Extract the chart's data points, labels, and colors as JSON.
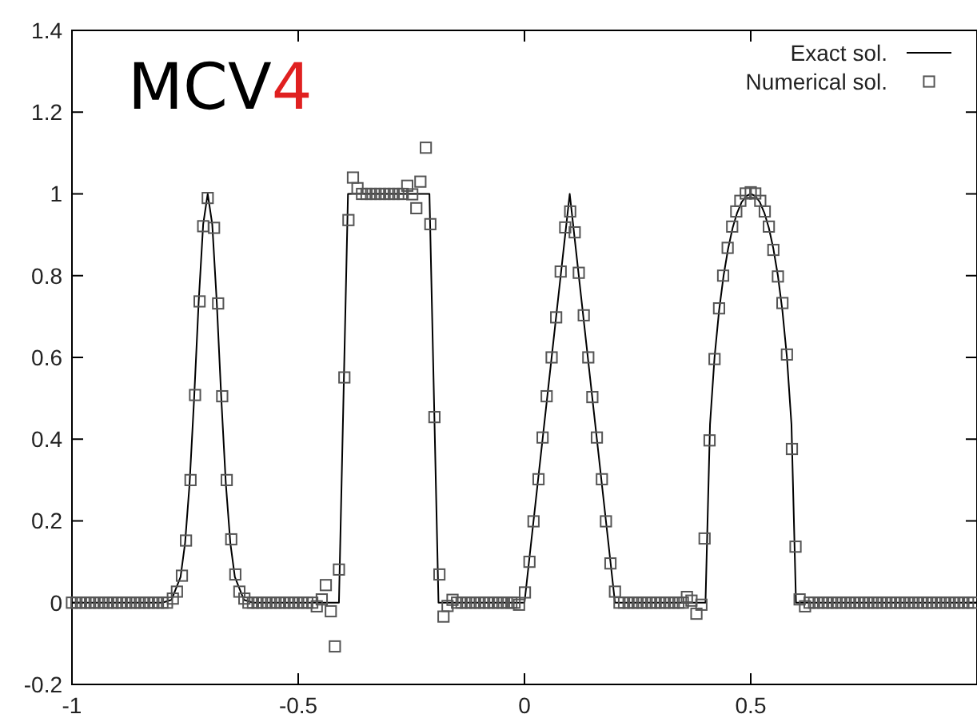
{
  "chart_data": {
    "type": "scatter",
    "title": "MCV4",
    "xlim": [
      -1,
      1
    ],
    "ylim": [
      -0.2,
      1.4
    ],
    "xticks": [
      -1,
      -0.5,
      0,
      0.5
    ],
    "yticks": [
      -0.2,
      0,
      0.2,
      0.4,
      0.6,
      0.8,
      1,
      1.2,
      1.4
    ],
    "legend": "top right",
    "series": [
      {
        "name": "Exact sol.",
        "type": "line",
        "color": "#000000",
        "marker": "none",
        "line_style": "solid",
        "x": [
          -1,
          -0.8,
          -0.78,
          -0.76,
          -0.75,
          -0.74,
          -0.73,
          -0.72,
          -0.71,
          -0.7,
          -0.69,
          -0.68,
          -0.67,
          -0.66,
          -0.65,
          -0.64,
          -0.62,
          -0.6,
          -0.41,
          -0.39,
          -0.21,
          -0.19,
          0,
          0.1,
          0.2,
          0.4,
          0.41,
          0.42,
          0.43,
          0.44,
          0.45,
          0.46,
          0.47,
          0.48,
          0.49,
          0.5,
          0.51,
          0.52,
          0.53,
          0.54,
          0.55,
          0.56,
          0.57,
          0.58,
          0.59,
          0.6,
          1
        ],
        "values": [
          0,
          0,
          0.007,
          0.063,
          0.146,
          0.292,
          0.5,
          0.735,
          0.926,
          1,
          0.926,
          0.735,
          0.5,
          0.292,
          0.146,
          0.063,
          0.007,
          0,
          0,
          1,
          1,
          0,
          0,
          1,
          0,
          0,
          0.436,
          0.6,
          0.714,
          0.8,
          0.866,
          0.917,
          0.954,
          0.98,
          0.995,
          1,
          0.995,
          0.98,
          0.954,
          0.917,
          0.866,
          0.8,
          0.714,
          0.6,
          0.436,
          0,
          0
        ]
      },
      {
        "name": "Numerical sol.",
        "color": "#555555",
        "marker": "square",
        "x": [
          -1,
          -0.99,
          -0.98,
          -0.97,
          -0.96,
          -0.95,
          -0.94,
          -0.93,
          -0.92,
          -0.91,
          -0.9,
          -0.89,
          -0.88,
          -0.87,
          -0.86,
          -0.85,
          -0.84,
          -0.83,
          -0.82,
          -0.81,
          -0.8,
          -0.79,
          -0.777,
          -0.768,
          -0.757,
          -0.748,
          -0.738,
          -0.728,
          -0.718,
          -0.71,
          -0.7,
          -0.686,
          -0.677,
          -0.668,
          -0.658,
          -0.648,
          -0.639,
          -0.63,
          -0.619,
          -0.61,
          -0.6,
          -0.59,
          -0.58,
          -0.57,
          -0.56,
          -0.55,
          -0.54,
          -0.53,
          -0.52,
          -0.51,
          -0.5,
          -0.49,
          -0.48,
          -0.469,
          -0.459,
          -0.448,
          -0.439,
          -0.428,
          -0.419,
          -0.41,
          -0.398,
          -0.389,
          -0.379,
          -0.369,
          -0.359,
          -0.349,
          -0.339,
          -0.329,
          -0.319,
          -0.309,
          -0.299,
          -0.289,
          -0.279,
          -0.269,
          -0.259,
          -0.248,
          -0.239,
          -0.23,
          -0.218,
          -0.208,
          -0.199,
          -0.188,
          -0.179,
          -0.17,
          -0.159,
          -0.149,
          -0.139,
          -0.129,
          -0.119,
          -0.109,
          -0.099,
          -0.089,
          -0.079,
          -0.069,
          -0.059,
          -0.049,
          -0.039,
          -0.029,
          -0.022,
          -0.012,
          0.001,
          0.011,
          0.02,
          0.031,
          0.04,
          0.049,
          0.06,
          0.07,
          0.08,
          0.09,
          0.101,
          0.111,
          0.12,
          0.131,
          0.141,
          0.15,
          0.16,
          0.171,
          0.18,
          0.19,
          0.2,
          0.21,
          0.22,
          0.23,
          0.24,
          0.25,
          0.26,
          0.27,
          0.28,
          0.29,
          0.3,
          0.31,
          0.32,
          0.33,
          0.34,
          0.35,
          0.359,
          0.369,
          0.38,
          0.391,
          0.398,
          0.409,
          0.42,
          0.43,
          0.439,
          0.449,
          0.459,
          0.468,
          0.477,
          0.489,
          0.5,
          0.51,
          0.521,
          0.531,
          0.54,
          0.55,
          0.56,
          0.57,
          0.58,
          0.591,
          0.599,
          0.608,
          0.62,
          0.63,
          0.64,
          0.65,
          0.66,
          0.67,
          0.68,
          0.69,
          0.7,
          0.71,
          0.72,
          0.73,
          0.74,
          0.75,
          0.76,
          0.77,
          0.78,
          0.79,
          0.8,
          0.81,
          0.82,
          0.83,
          0.84,
          0.85,
          0.86,
          0.87,
          0.88,
          0.89,
          0.9,
          0.91,
          0.92,
          0.93,
          0.94,
          0.95,
          0.96,
          0.97,
          0.98,
          0.99
        ],
        "values": [
          0,
          0,
          0,
          0,
          0,
          0,
          0,
          0,
          0,
          0,
          0,
          0,
          0,
          0,
          0,
          0,
          0,
          0,
          0,
          0,
          0,
          0,
          0.01,
          0.027,
          0.066,
          0.152,
          0.3,
          0.508,
          0.737,
          0.921,
          0.99,
          0.917,
          0.732,
          0.505,
          0.3,
          0.155,
          0.069,
          0.027,
          0.01,
          0,
          0,
          0,
          0,
          0,
          0,
          0,
          0,
          0,
          0,
          0,
          0,
          0,
          0,
          0,
          -0.009,
          0.008,
          0.043,
          -0.021,
          -0.107,
          0.081,
          0.551,
          0.936,
          1.04,
          1.014,
          1,
          1,
          1,
          1,
          1,
          1,
          1,
          1,
          1,
          1,
          1.02,
          0.999,
          0.965,
          1.03,
          1.113,
          0.926,
          0.454,
          0.069,
          -0.034,
          -0.008,
          0.007,
          0,
          0,
          0,
          0,
          0,
          0,
          0,
          0,
          0,
          0,
          0,
          0,
          0,
          0,
          -0.005,
          0.025,
          0.1,
          0.199,
          0.302,
          0.404,
          0.505,
          0.6,
          0.698,
          0.81,
          0.918,
          0.957,
          0.906,
          0.807,
          0.703,
          0.6,
          0.503,
          0.404,
          0.302,
          0.199,
          0.096,
          0.027,
          0,
          0,
          0,
          0,
          0,
          0,
          0,
          0,
          0,
          0,
          0,
          0,
          0,
          0,
          0,
          0.014,
          0.005,
          -0.027,
          -0.005,
          0.157,
          0.397,
          0.596,
          0.72,
          0.8,
          0.868,
          0.92,
          0.957,
          0.983,
          1.001,
          1.004,
          1.001,
          0.983,
          0.957,
          0.92,
          0.863,
          0.798,
          0.733,
          0.607,
          0.376,
          0.137,
          0.008,
          -0.009,
          0,
          0,
          0,
          0,
          0,
          0,
          0,
          0,
          0,
          0,
          0,
          0,
          0,
          0,
          0,
          0,
          0,
          0,
          0,
          0,
          0,
          0,
          0,
          0,
          0,
          0,
          0,
          0,
          0,
          0,
          0,
          0,
          0,
          0,
          0,
          0,
          0
        ]
      }
    ]
  }
}
